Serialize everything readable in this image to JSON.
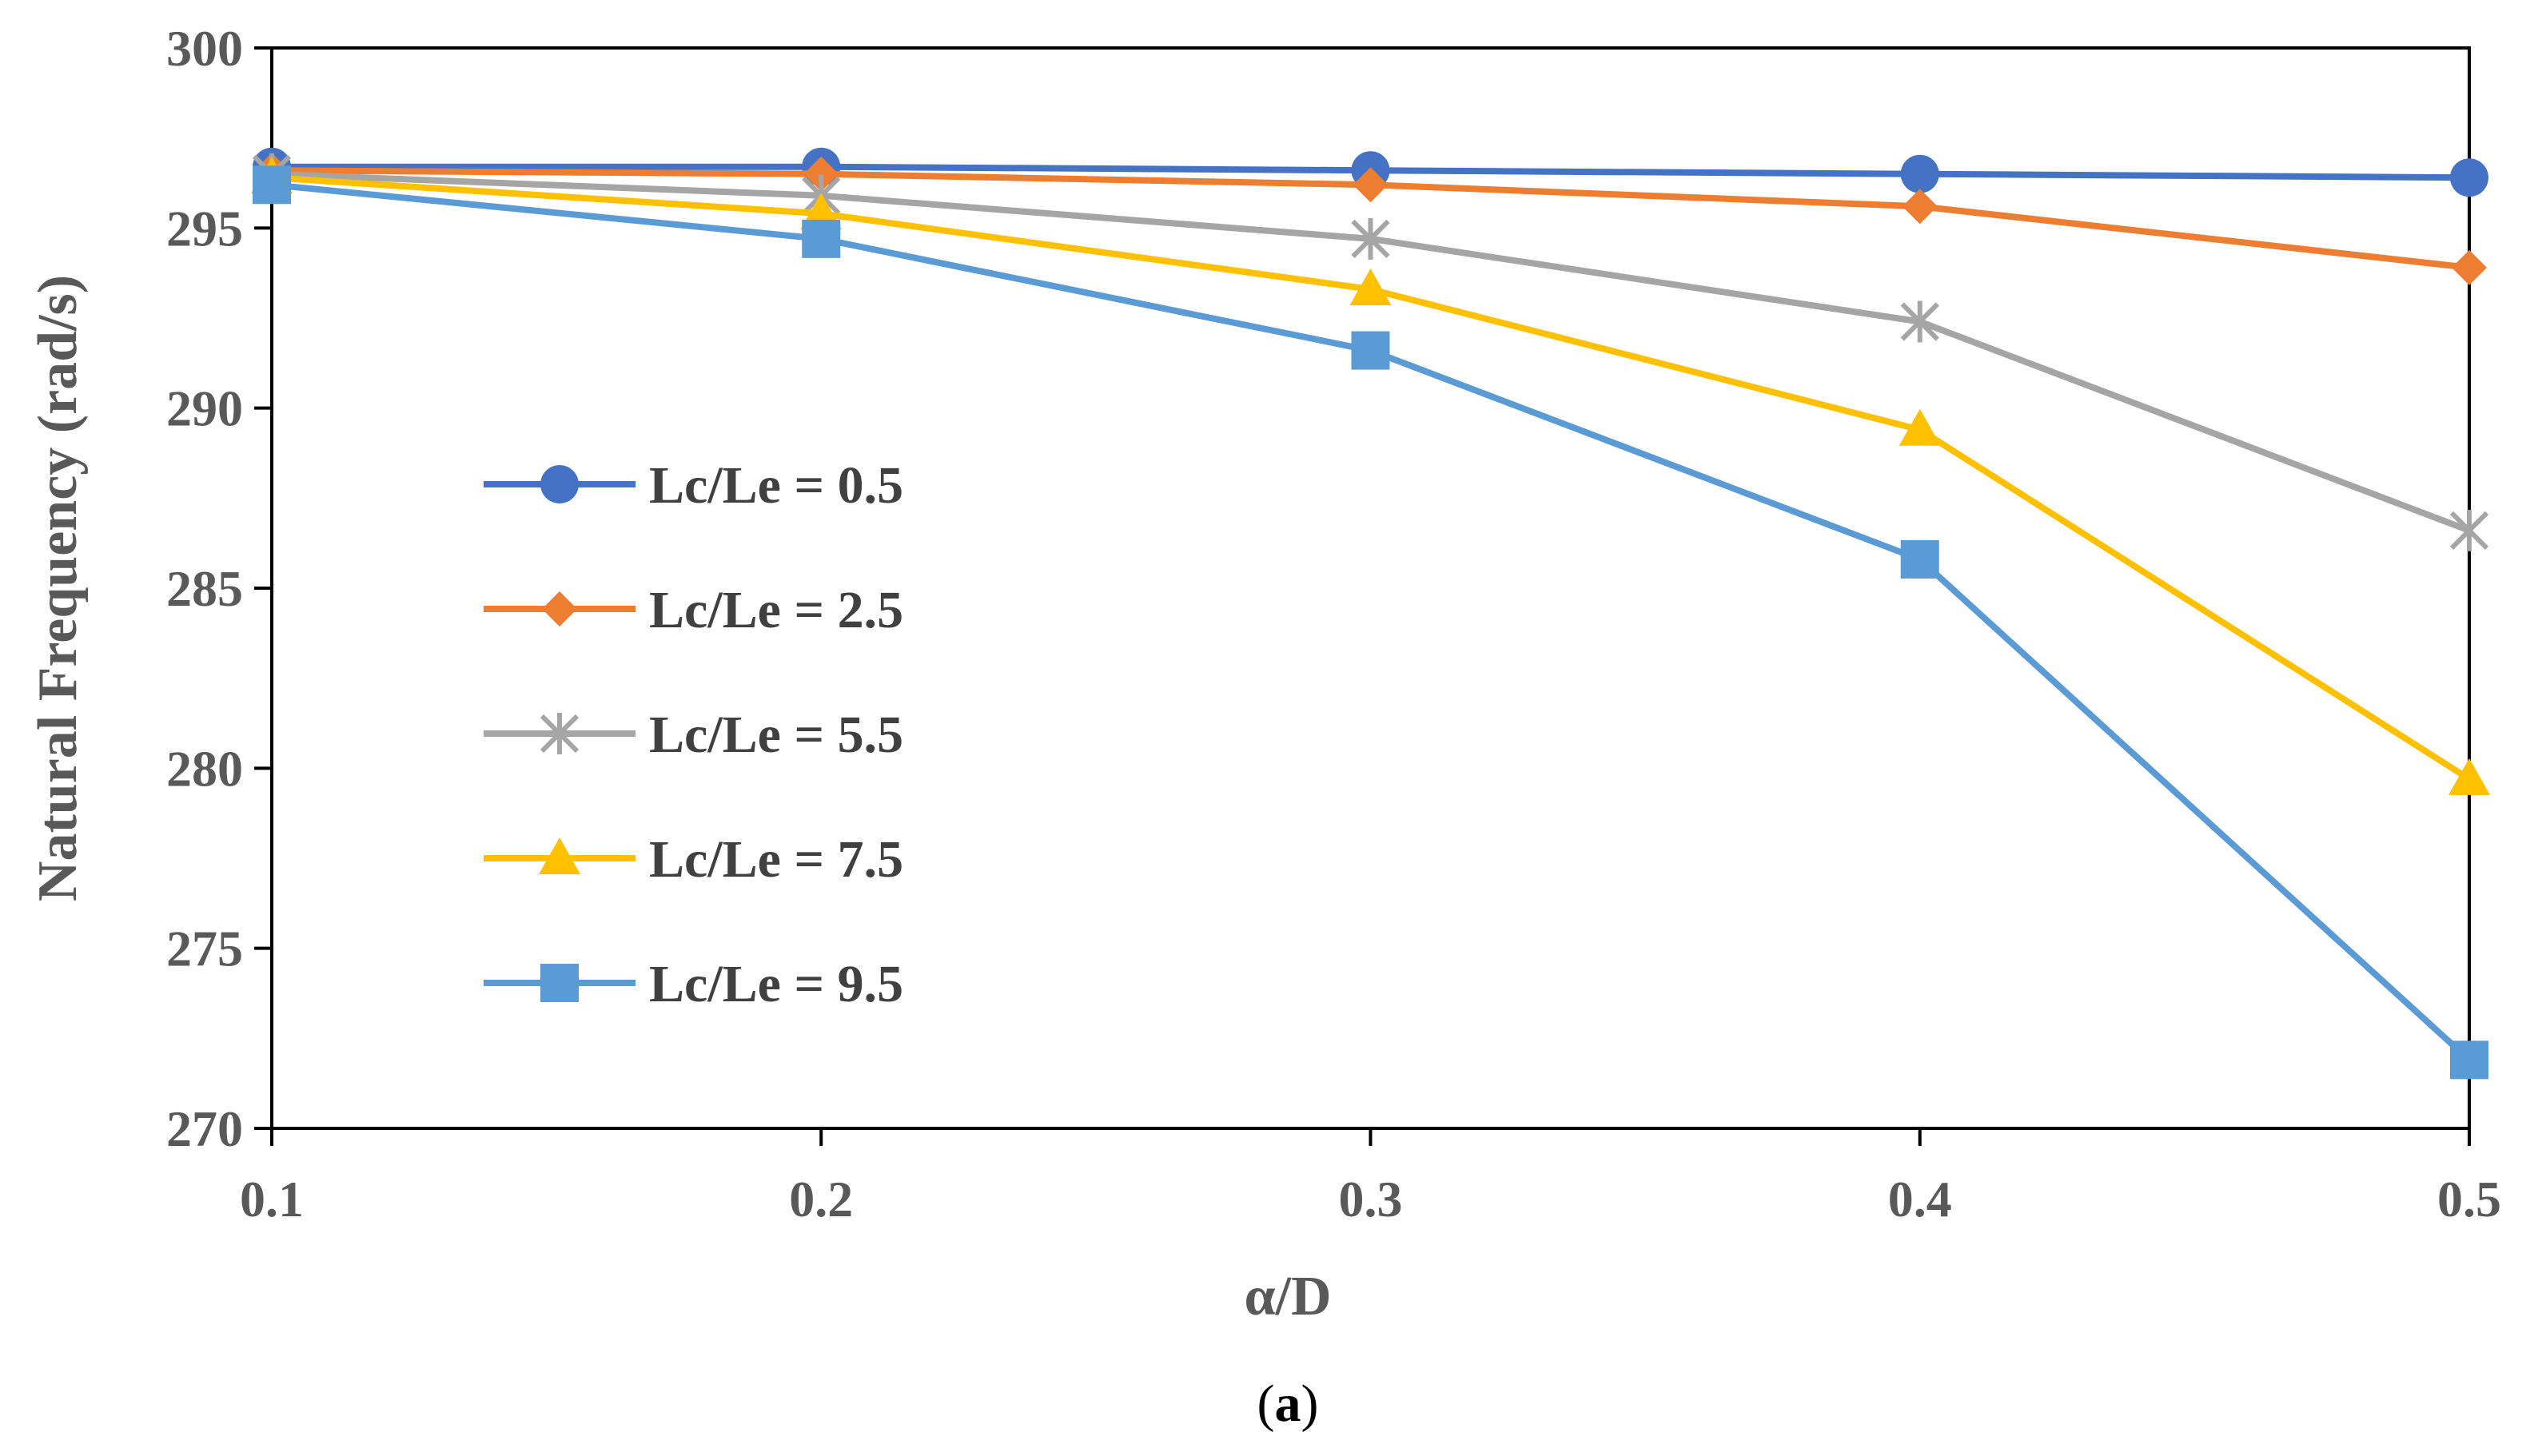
{
  "chart_data": {
    "type": "line",
    "xlabel": "α/D",
    "ylabel": "Natural Frequency (rad/s)",
    "x": [
      0.1,
      0.2,
      0.3,
      0.4,
      0.5
    ],
    "x_tick_labels": [
      "0.1",
      "0.2",
      "0.3",
      "0.4",
      "0.5"
    ],
    "y_tick_labels": [
      "270",
      "275",
      "280",
      "285",
      "290",
      "295",
      "300"
    ],
    "xlim": [
      0.1,
      0.5
    ],
    "ylim": [
      270,
      300
    ],
    "grid": false,
    "legend_position": "center-left",
    "series": [
      {
        "name": "Lc/Le = 0.5",
        "color": "#4472C4",
        "marker": "circle",
        "values": [
          296.7,
          296.7,
          296.6,
          296.5,
          296.4
        ]
      },
      {
        "name": "Lc/Le = 2.5",
        "color": "#ED7D31",
        "marker": "diamond",
        "values": [
          296.6,
          296.5,
          296.2,
          295.6,
          293.9
        ]
      },
      {
        "name": "Lc/Le = 5.5",
        "color": "#A5A5A5",
        "marker": "asterisk",
        "values": [
          296.5,
          295.9,
          294.7,
          292.4,
          286.6
        ]
      },
      {
        "name": "Lc/Le = 7.5",
        "color": "#FFC000",
        "marker": "triangle",
        "values": [
          296.4,
          295.4,
          293.3,
          289.4,
          279.7
        ]
      },
      {
        "name": "Lc/Le = 9.5",
        "color": "#5B9BD5",
        "marker": "square",
        "values": [
          296.2,
          294.7,
          291.6,
          285.8,
          271.9
        ]
      }
    ]
  },
  "caption": {
    "open": "(",
    "label": "a",
    "close": ")"
  }
}
